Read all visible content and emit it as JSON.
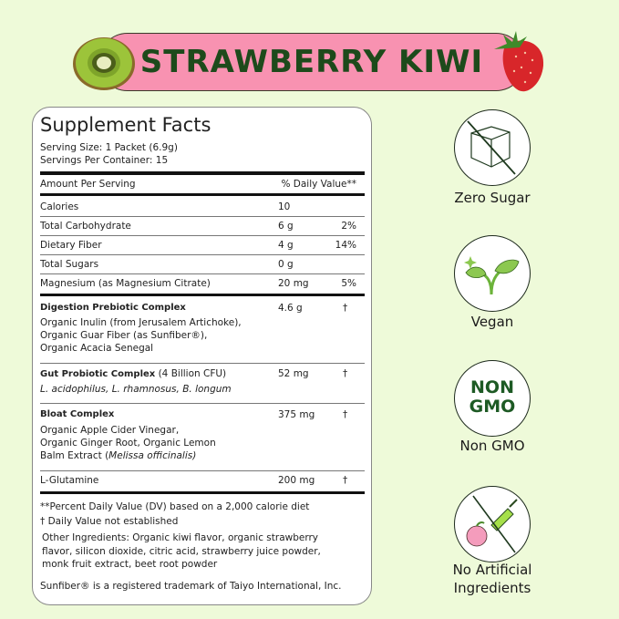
{
  "banner": {
    "title": "STRAWBERRY KIWI",
    "color": "#f892b1",
    "text_color": "#1d4a1b",
    "left_image": "kiwi-half",
    "right_image": "strawberry"
  },
  "facts": {
    "title": "Supplement Facts",
    "serving_size": "Serving Size: 1 Packet (6.9g)",
    "servings": "Servings Per Container: 15",
    "header_left": "Amount Per Serving",
    "header_right": "% Daily Value**",
    "rows": [
      {
        "name": "Calories",
        "amount": "10",
        "dv": ""
      },
      {
        "name": "Total Carbohydrate",
        "amount": "6 g",
        "dv": "2%"
      },
      {
        "name": "Dietary Fiber",
        "amount": "4 g",
        "dv": "14%"
      },
      {
        "name": "Total Sugars",
        "amount": "0 g",
        "dv": ""
      },
      {
        "name": "Magnesium (as Magnesium Citrate)",
        "amount": "20 mg",
        "dv": "5%"
      }
    ],
    "blends": [
      {
        "name": "Digestion Prebiotic Complex",
        "amount": "4.6 g",
        "dv": "†",
        "lines": [
          "Organic Inulin (from Jerusalem Artichoke),",
          "Organic Guar Fiber (as Sunfiber®),",
          "Organic Acacia Senegal"
        ]
      },
      {
        "name": "Gut Probiotic Complex",
        "name_suffix": " (4 Billion CFU)",
        "amount": "52 mg",
        "dv": "†",
        "lines": [
          "L. acidophilus, L. rhamnosus, B. longum"
        ]
      },
      {
        "name": "Bloat Complex",
        "amount": "375 mg",
        "dv": "†",
        "lines": [
          "Organic Apple Cider Vinegar,",
          "Organic Ginger Root, Organic Lemon",
          "Balm Extract ("
        ],
        "italic_tail": "Melissa officinalis)"
      },
      {
        "name": "L-Glutamine",
        "amount": "200 mg",
        "dv": "†"
      }
    ],
    "footnote1": "**Percent Daily Value (DV) based on a 2,000 calorie diet",
    "footnote2": "† Daily Value not established",
    "other": [
      "Other Ingredients:  Organic kiwi flavor, organic strawberry",
      "flavor, silicon dioxide, citric acid, strawberry juice powder,",
      "monk fruit extract, beet root powder"
    ],
    "trademark": "Sunfiber® is a registered trademark of Taiyo International, Inc."
  },
  "badges": [
    {
      "icon": "no-sugar-cube",
      "label": "Zero Sugar"
    },
    {
      "icon": "sprout",
      "label": "Vegan"
    },
    {
      "icon": "non-gmo",
      "icon_text": [
        "NON",
        "GMO"
      ],
      "label": "Non GMO"
    },
    {
      "icon": "no-artificial",
      "label": [
        "No Artificial",
        "Ingredients"
      ]
    }
  ]
}
